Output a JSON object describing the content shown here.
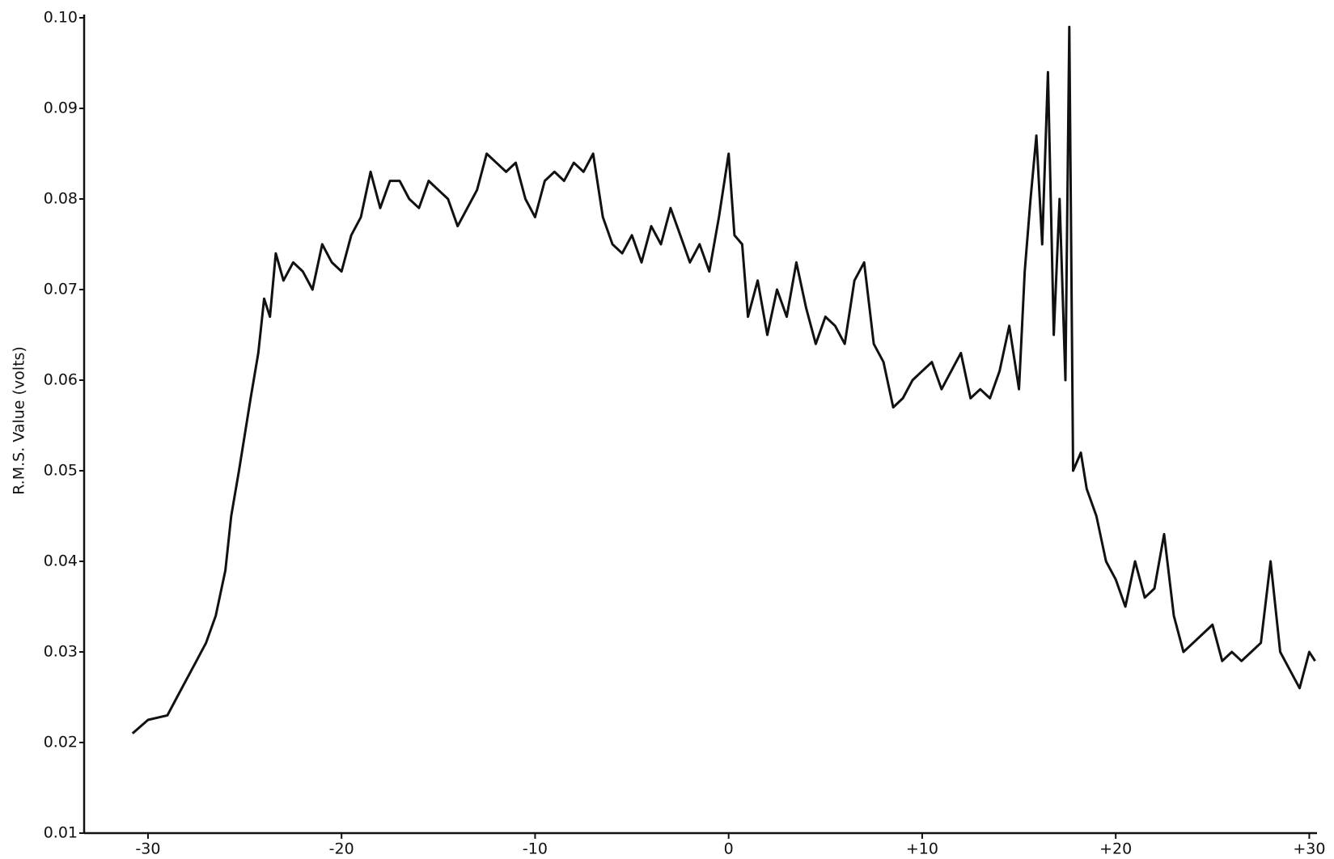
{
  "chart_data": {
    "type": "line",
    "y_label": "R.M.S. Value (volts)",
    "xlim": [
      -33.3,
      30.4
    ],
    "ylim": [
      0.01,
      0.1
    ],
    "xticks": [
      -30,
      -20,
      -10,
      0,
      {
        "value": 10,
        "label": "+10"
      },
      {
        "value": 20,
        "label": "+20"
      },
      {
        "value": 30,
        "label": "+30"
      }
    ],
    "yticks": [
      0.01,
      0.02,
      0.03,
      0.04,
      0.05,
      0.06,
      0.07,
      0.08,
      0.09,
      {
        "value": 0.1,
        "label": "0.10"
      }
    ],
    "grid": false,
    "x": [
      -30.8,
      -30,
      -29,
      -28.5,
      -28,
      -27.5,
      -27,
      -26.5,
      -26,
      -25.7,
      -25.3,
      -25,
      -24.7,
      -24.3,
      -24,
      -23.7,
      -23.4,
      -23,
      -22.5,
      -22,
      -21.5,
      -21,
      -20.5,
      -20,
      -19.5,
      -19,
      -18.5,
      -18,
      -17.5,
      -17,
      -16.5,
      -16,
      -15.5,
      -15,
      -14.5,
      -14,
      -13.5,
      -13,
      -12.5,
      -12,
      -11.5,
      -11,
      -10.5,
      -10,
      -9.5,
      -9,
      -8.5,
      -8,
      -7.5,
      -7,
      -6.5,
      -6,
      -5.5,
      -5,
      -4.5,
      -4,
      -3.5,
      -3,
      -2.5,
      -2,
      -1.5,
      -1,
      -0.5,
      0,
      0.3,
      0.7,
      1,
      1.5,
      2,
      2.5,
      3,
      3.5,
      4,
      4.5,
      5,
      5.5,
      6,
      6.5,
      7,
      7.5,
      8,
      8.5,
      9,
      9.5,
      10,
      10.5,
      11,
      11.5,
      12,
      12.5,
      13,
      13.5,
      14,
      14.5,
      15,
      15.3,
      15.6,
      15.9,
      16.2,
      16.5,
      16.8,
      17.1,
      17.4,
      17.6,
      17.8,
      18.2,
      18.5,
      19,
      19.5,
      20,
      20.5,
      21,
      21.5,
      22,
      22.5,
      23,
      23.5,
      24,
      24.5,
      25,
      25.5,
      26,
      26.5,
      27,
      27.5,
      28,
      28.5,
      29,
      29.5,
      30,
      30.3
    ],
    "series": [
      {
        "color": "#111111",
        "values": [
          0.021,
          0.0225,
          0.023,
          0.025,
          0.027,
          0.029,
          0.031,
          0.034,
          0.039,
          0.045,
          0.05,
          0.054,
          0.058,
          0.063,
          0.069,
          0.067,
          0.074,
          0.071,
          0.073,
          0.072,
          0.07,
          0.075,
          0.073,
          0.072,
          0.076,
          0.078,
          0.083,
          0.079,
          0.082,
          0.082,
          0.08,
          0.079,
          0.082,
          0.081,
          0.08,
          0.077,
          0.079,
          0.081,
          0.085,
          0.084,
          0.083,
          0.084,
          0.08,
          0.078,
          0.082,
          0.083,
          0.082,
          0.084,
          0.083,
          0.085,
          0.078,
          0.075,
          0.074,
          0.076,
          0.073,
          0.077,
          0.075,
          0.079,
          0.076,
          0.073,
          0.075,
          0.072,
          0.078,
          0.085,
          0.076,
          0.075,
          0.067,
          0.071,
          0.065,
          0.07,
          0.067,
          0.073,
          0.068,
          0.064,
          0.067,
          0.066,
          0.064,
          0.071,
          0.073,
          0.064,
          0.062,
          0.057,
          0.058,
          0.06,
          0.061,
          0.062,
          0.059,
          0.061,
          0.063,
          0.058,
          0.059,
          0.058,
          0.061,
          0.066,
          0.059,
          0.072,
          0.08,
          0.087,
          0.075,
          0.094,
          0.065,
          0.08,
          0.06,
          0.099,
          0.05,
          0.052,
          0.048,
          0.045,
          0.04,
          0.038,
          0.035,
          0.04,
          0.036,
          0.037,
          0.043,
          0.034,
          0.03,
          0.031,
          0.032,
          0.033,
          0.029,
          0.03,
          0.029,
          0.03,
          0.031,
          0.04,
          0.03,
          0.028,
          0.026,
          0.03,
          0.029
        ]
      }
    ]
  }
}
